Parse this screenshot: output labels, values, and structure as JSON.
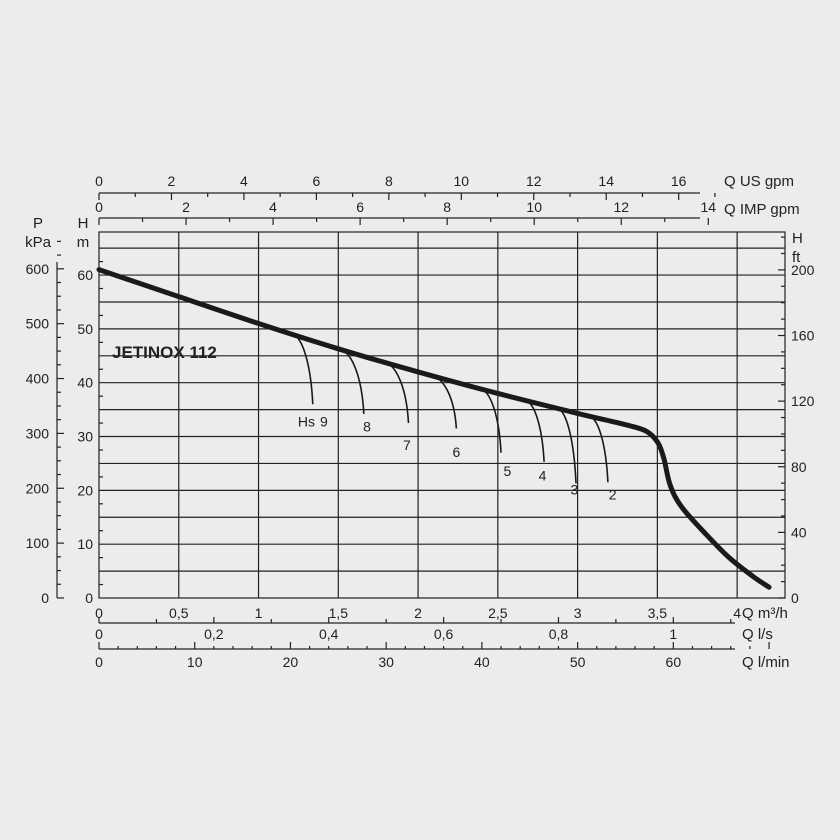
{
  "chart_data": {
    "type": "line",
    "title": "JETINOX 112",
    "x_axes": {
      "m3h": {
        "label": "Q m³/h",
        "range": [
          0,
          4.3
        ],
        "ticks": [
          {
            "v": 0,
            "t": "0"
          },
          {
            "v": 0.5,
            "t": "0,5"
          },
          {
            "v": 1,
            "t": "1"
          },
          {
            "v": 1.5,
            "t": "1,5"
          },
          {
            "v": 2,
            "t": "2"
          },
          {
            "v": 2.5,
            "t": "2,5"
          },
          {
            "v": 3,
            "t": "3"
          },
          {
            "v": 3.5,
            "t": "3,5"
          },
          {
            "v": 4,
            "t": "4"
          }
        ]
      },
      "ls": {
        "label": "Q l/s",
        "ticks": [
          {
            "v": 0,
            "t": "0"
          },
          {
            "v": 0.2,
            "t": "0,2"
          },
          {
            "v": 0.4,
            "t": "0,4"
          },
          {
            "v": 0.6,
            "t": "0,6"
          },
          {
            "v": 0.8,
            "t": "0,8"
          },
          {
            "v": 1,
            "t": "1"
          }
        ]
      },
      "lmin": {
        "label": "Q l/min",
        "ticks": [
          {
            "v": 0,
            "t": "0"
          },
          {
            "v": 10,
            "t": "10"
          },
          {
            "v": 20,
            "t": "20"
          },
          {
            "v": 30,
            "t": "30"
          },
          {
            "v": 40,
            "t": "40"
          },
          {
            "v": 50,
            "t": "50"
          },
          {
            "v": 60,
            "t": "60"
          }
        ]
      },
      "us_gpm": {
        "label": "Q US gpm",
        "ticks": [
          {
            "v": 0,
            "t": "0"
          },
          {
            "v": 2,
            "t": "2"
          },
          {
            "v": 4,
            "t": "4"
          },
          {
            "v": 6,
            "t": "6"
          },
          {
            "v": 8,
            "t": "8"
          },
          {
            "v": 10,
            "t": "10"
          },
          {
            "v": 12,
            "t": "12"
          },
          {
            "v": 14,
            "t": "14"
          },
          {
            "v": 16,
            "t": "16"
          }
        ]
      },
      "imp_gpm": {
        "label": "Q IMP gpm",
        "ticks": [
          {
            "v": 0,
            "t": "0"
          },
          {
            "v": 2,
            "t": "2"
          },
          {
            "v": 4,
            "t": "4"
          },
          {
            "v": 6,
            "t": "6"
          },
          {
            "v": 8,
            "t": "8"
          },
          {
            "v": 10,
            "t": "10"
          },
          {
            "v": 12,
            "t": "12"
          },
          {
            "v": 14,
            "t": "14"
          }
        ]
      }
    },
    "y_axes": {
      "m": {
        "label_top": "H",
        "label_unit": "m",
        "range": [
          0,
          68
        ],
        "ticks": [
          {
            "v": 0,
            "t": "0"
          },
          {
            "v": 10,
            "t": "10"
          },
          {
            "v": 20,
            "t": "20"
          },
          {
            "v": 30,
            "t": "30"
          },
          {
            "v": 40,
            "t": "40"
          },
          {
            "v": 50,
            "t": "50"
          },
          {
            "v": 60,
            "t": "60"
          }
        ]
      },
      "kpa": {
        "label_top": "P",
        "label_unit": "kPa",
        "ticks": [
          {
            "v": 0,
            "t": "0"
          },
          {
            "v": 100,
            "t": "100"
          },
          {
            "v": 200,
            "t": "200"
          },
          {
            "v": 300,
            "t": "300"
          },
          {
            "v": 400,
            "t": "400"
          },
          {
            "v": 500,
            "t": "500"
          },
          {
            "v": 600,
            "t": "600"
          }
        ]
      },
      "ft": {
        "label_top": "H",
        "label_unit": "ft",
        "ticks": [
          {
            "v": 0,
            "t": "0"
          },
          {
            "v": 40,
            "t": "40"
          },
          {
            "v": 80,
            "t": "80"
          },
          {
            "v": 120,
            "t": "120"
          },
          {
            "v": 160,
            "t": "160"
          },
          {
            "v": 200,
            "t": "200"
          }
        ]
      }
    },
    "series": [
      {
        "name": "JETINOX 112",
        "x": [
          0,
          0.5,
          1.0,
          1.5,
          2.0,
          2.5,
          3.0,
          3.3,
          3.43,
          3.5,
          3.54,
          3.58,
          3.65,
          3.8,
          3.95,
          4.1,
          4.2
        ],
        "y": [
          61,
          56,
          51,
          46.3,
          42,
          38,
          34.3,
          32.2,
          31,
          29,
          26,
          21,
          17,
          12,
          7.5,
          4,
          2
        ]
      }
    ],
    "suction_curves": {
      "prefix": "Hs",
      "items": [
        {
          "label": "9",
          "start_x": 1.22,
          "end": [
            1.34,
            36
          ]
        },
        {
          "label": "8",
          "start_x": 1.52,
          "end": [
            1.66,
            34.2
          ]
        },
        {
          "label": "7",
          "start_x": 1.8,
          "end": [
            1.94,
            32.5
          ]
        },
        {
          "label": "6",
          "start_x": 2.1,
          "end": [
            2.24,
            31.5
          ]
        },
        {
          "label": "5",
          "start_x": 2.4,
          "end": [
            2.52,
            27
          ]
        },
        {
          "label": "4",
          "start_x": 2.68,
          "end": [
            2.79,
            25.3
          ]
        },
        {
          "label": "3",
          "start_x": 2.88,
          "end": [
            2.99,
            21.3
          ]
        },
        {
          "label": "2",
          "start_x": 3.08,
          "end": [
            3.19,
            21.5
          ]
        }
      ],
      "number_labels_at": [
        [
          1.41,
          31.9
        ],
        [
          1.68,
          30.9
        ],
        [
          1.93,
          27.5
        ],
        [
          2.24,
          26.2
        ],
        [
          2.56,
          22.7
        ],
        [
          2.78,
          21.8
        ],
        [
          2.98,
          19.2
        ],
        [
          3.22,
          18.3
        ]
      ],
      "hs_label_at": [
        1.3,
        31.9
      ]
    },
    "grid": true
  }
}
